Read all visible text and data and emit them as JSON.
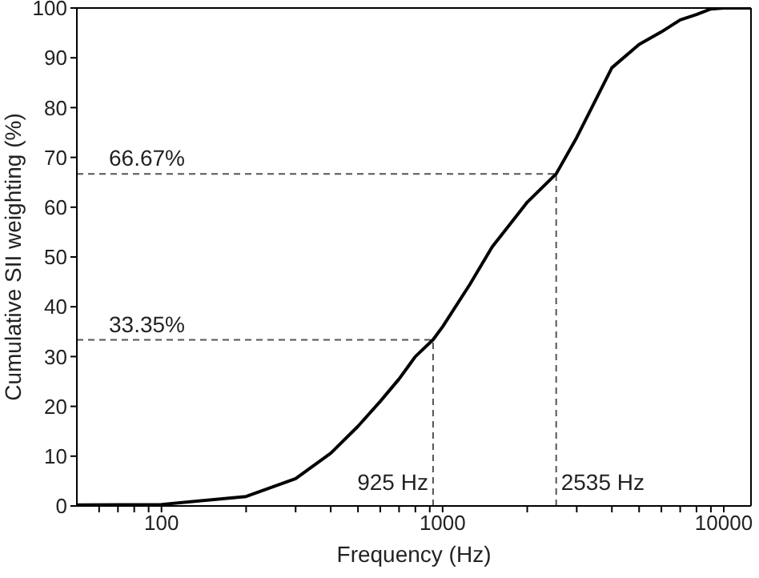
{
  "chart_data": {
    "type": "line",
    "xlabel": "Frequency (Hz)",
    "ylabel": "Cumulative SII weighting (%)",
    "log": "x",
    "marker": "none",
    "line_style": "solid",
    "xlim": [
      50,
      12500
    ],
    "xticks": [
      {
        "value": 60,
        "label": null
      },
      {
        "value": 70,
        "label": null
      },
      {
        "value": 80,
        "label": null
      },
      {
        "value": 90,
        "label": null
      },
      100,
      {
        "value": 200,
        "label": null
      },
      {
        "value": 300,
        "label": null
      },
      {
        "value": 400,
        "label": null
      },
      {
        "value": 500,
        "label": null
      },
      {
        "value": 600,
        "label": null
      },
      {
        "value": 700,
        "label": null
      },
      {
        "value": 800,
        "label": null
      },
      {
        "value": 900,
        "label": null
      },
      1000,
      {
        "value": 2000,
        "label": null
      },
      {
        "value": 3000,
        "label": null
      },
      {
        "value": 4000,
        "label": null
      },
      {
        "value": 5000,
        "label": null
      },
      {
        "value": 6000,
        "label": null
      },
      {
        "value": 7000,
        "label": null
      },
      {
        "value": 8000,
        "label": null
      },
      {
        "value": 9000,
        "label": null
      },
      10000
    ],
    "ylim": [
      0,
      100
    ],
    "yticks": [
      0,
      10,
      20,
      30,
      40,
      50,
      60,
      70,
      80,
      90,
      100
    ],
    "x": [
      50,
      100,
      200,
      300,
      400,
      500,
      600,
      700,
      800,
      925,
      1000,
      1250,
      1500,
      2000,
      2535,
      3000,
      4000,
      5000,
      6000,
      7000,
      8000,
      9000,
      10000,
      12500
    ],
    "series": [
      {
        "color": "#000000",
        "values": [
          0.2,
          0.3,
          1.9,
          5.5,
          10.6,
          16,
          21,
          25.5,
          30,
          33.4,
          36,
          44.5,
          52,
          61,
          66.7,
          74,
          88,
          92.7,
          95.2,
          97.6,
          98.7,
          99.8,
          100,
          100
        ]
      }
    ],
    "ref_lines": [
      {
        "axis": "y",
        "value": 33.35,
        "label": "33.35%",
        "color": "#555555",
        "line_style": "dashed"
      },
      {
        "axis": "x",
        "value": 925,
        "label": "925 Hz",
        "color": "#555555",
        "line_style": "dashed"
      },
      {
        "axis": "y",
        "value": 66.67,
        "label": "66.67%",
        "color": "#555555",
        "line_style": "dashed"
      },
      {
        "axis": "x",
        "value": 2535,
        "label": "2535 Hz",
        "color": "#555555",
        "line_style": "dashed"
      }
    ]
  }
}
